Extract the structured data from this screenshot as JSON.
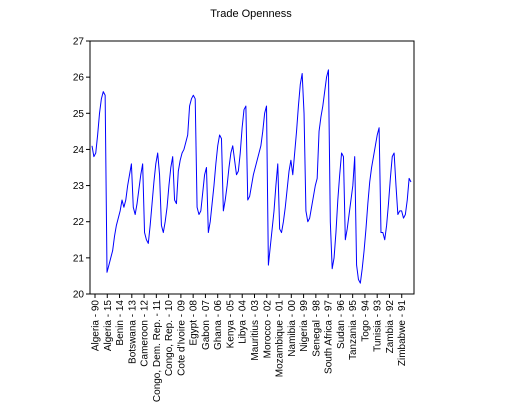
{
  "chart_data": {
    "type": "line",
    "title": "Trade Openness",
    "xlabel": "",
    "ylabel": "",
    "ylim": [
      20,
      27
    ],
    "yticks": [
      20,
      21,
      22,
      23,
      24,
      25,
      26,
      27
    ],
    "grid": false,
    "line_color": "#0000ff",
    "xtick_labels": [
      "Algeria - 90",
      "Algeria - 15",
      "Benin - 14",
      "Botswana - 13",
      "Cameroon - 12",
      "Congo, Dem. Rep. - 11",
      "Congo, Rep. - 10",
      "Cote d'Ivoire - 09",
      "Egypt - 08",
      "Gabon - 07",
      "Ghana - 06",
      "Kenya - 05",
      "Libya - 04",
      "Mauritius - 03",
      "Morocco - 02",
      "Mozambique - 01",
      "Namibia - 00",
      "Nigeria - 99",
      "Senegal - 98",
      "South Africa - 97",
      "Sudan - 96",
      "Tanzania - 95",
      "Togo - 94",
      "Tunisia - 93",
      "Zambia - 92",
      "Zimbabwe - 91"
    ],
    "series": [
      {
        "values": [
          24.1,
          23.8,
          23.9,
          24.4,
          25.0,
          25.4,
          25.6,
          25.5,
          20.6,
          20.8,
          21.0,
          21.2,
          21.6,
          21.9,
          22.1,
          22.3,
          22.6,
          22.4,
          22.6,
          23.0,
          23.3,
          23.6,
          22.4,
          22.2,
          22.5,
          22.9,
          23.3,
          23.6,
          21.7,
          21.5,
          21.4,
          21.9,
          22.5,
          23.1,
          23.6,
          23.9,
          23.3,
          21.9,
          21.7,
          22.0,
          22.4,
          23.0,
          23.5,
          23.8,
          22.6,
          22.5,
          23.4,
          23.7,
          23.9,
          24.0,
          24.2,
          24.4,
          25.2,
          25.4,
          25.5,
          25.4,
          22.4,
          22.2,
          22.3,
          22.8,
          23.3,
          23.5,
          21.7,
          22.0,
          22.5,
          23.0,
          23.6,
          24.1,
          24.4,
          24.3,
          22.3,
          22.6,
          23.0,
          23.5,
          23.9,
          24.1,
          23.7,
          23.3,
          23.4,
          23.9,
          24.6,
          25.1,
          25.2,
          22.6,
          22.7,
          23.0,
          23.3,
          23.5,
          23.7,
          23.9,
          24.1,
          24.5,
          25.0,
          25.2,
          20.8,
          21.3,
          21.8,
          22.3,
          23.0,
          23.6,
          21.8,
          21.7,
          22.0,
          22.4,
          22.9,
          23.4,
          23.7,
          23.3,
          23.9,
          24.5,
          25.2,
          25.8,
          26.1,
          25.0,
          22.3,
          22.0,
          22.1,
          22.4,
          22.7,
          23.0,
          23.2,
          24.5,
          24.9,
          25.2,
          25.6,
          26.0,
          26.2,
          22.0,
          20.7,
          21.0,
          21.7,
          22.6,
          23.3,
          23.9,
          23.8,
          21.5,
          21.8,
          22.2,
          22.6,
          23.0,
          23.8,
          20.8,
          20.4,
          20.3,
          20.7,
          21.2,
          21.8,
          22.5,
          23.1,
          23.5,
          23.8,
          24.1,
          24.4,
          24.6,
          21.7,
          21.7,
          21.5,
          21.9,
          22.5,
          23.2,
          23.8,
          23.9,
          23.0,
          22.2,
          22.3,
          22.3,
          22.1,
          22.2,
          22.6,
          23.2,
          23.1
        ]
      }
    ]
  }
}
